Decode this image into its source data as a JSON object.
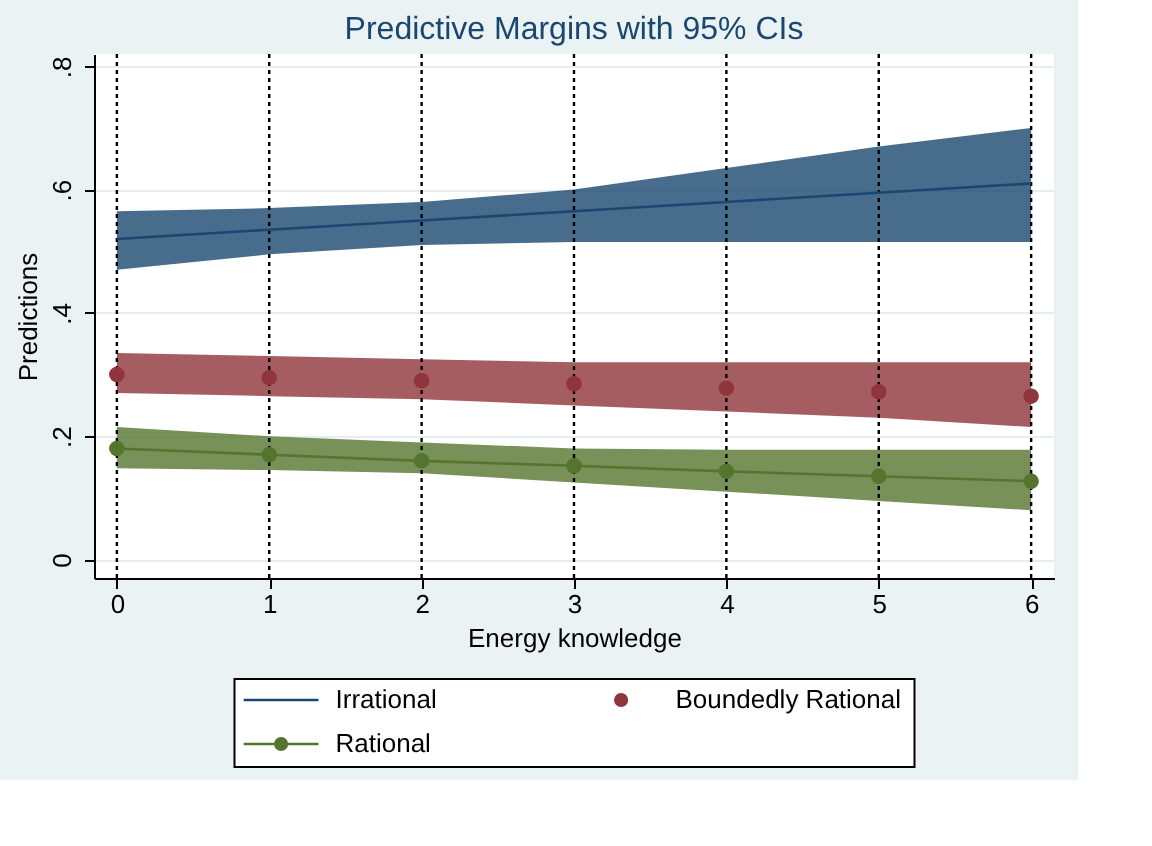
{
  "chart_data": {
    "type": "line",
    "title": "Predictive Margins with 95% CIs",
    "xlabel": "Energy knowledge",
    "ylabel": "Predictions",
    "x": [
      0,
      1,
      2,
      3,
      4,
      5,
      6
    ],
    "series": [
      {
        "name": "Irrational",
        "marker": "none",
        "color": "#1a476f",
        "values": [
          0.52,
          0.535,
          0.55,
          0.565,
          0.58,
          0.595,
          0.61
        ],
        "lower": [
          0.47,
          0.495,
          0.51,
          0.515,
          0.515,
          0.515,
          0.515
        ],
        "upper": [
          0.565,
          0.57,
          0.58,
          0.6,
          0.635,
          0.67,
          0.7
        ]
      },
      {
        "name": "Boundedly Rational",
        "type": "scatter",
        "marker": "circle",
        "color": "#90353b",
        "values": [
          0.3,
          0.295,
          0.29,
          0.285,
          0.278,
          0.272,
          0.265
        ],
        "lower": [
          0.27,
          0.265,
          0.26,
          0.25,
          0.24,
          0.23,
          0.215
        ],
        "upper": [
          0.335,
          0.33,
          0.325,
          0.32,
          0.32,
          0.32,
          0.32
        ]
      },
      {
        "name": "Rational",
        "marker": "circle",
        "color": "#55752f",
        "values": [
          0.18,
          0.17,
          0.16,
          0.152,
          0.143,
          0.135,
          0.127
        ],
        "lower": [
          0.148,
          0.145,
          0.14,
          0.125,
          0.11,
          0.095,
          0.08
        ],
        "upper": [
          0.215,
          0.2,
          0.19,
          0.18,
          0.178,
          0.178,
          0.178
        ]
      }
    ],
    "xlim": [
      -0.15,
      6.15
    ],
    "xticks": [
      0,
      1,
      2,
      3,
      4,
      5,
      6
    ],
    "ylim": [
      -0.03,
      0.82
    ],
    "yticks": [
      {
        "value": 0,
        "label": "0"
      },
      {
        "value": 0.2,
        "label": ".2"
      },
      {
        "value": 0.4,
        "label": ".4"
      },
      {
        "value": 0.6,
        "label": ".6"
      },
      {
        "value": 0.8,
        "label": ".8"
      }
    ],
    "ref_lines": [
      {
        "axis": "x",
        "value": 0,
        "line_style": "dotted",
        "color": "#000000"
      },
      {
        "axis": "x",
        "value": 1,
        "line_style": "dotted",
        "color": "#000000"
      },
      {
        "axis": "x",
        "value": 2,
        "line_style": "dotted",
        "color": "#000000"
      },
      {
        "axis": "x",
        "value": 3,
        "line_style": "dotted",
        "color": "#000000"
      },
      {
        "axis": "x",
        "value": 4,
        "line_style": "dotted",
        "color": "#000000"
      },
      {
        "axis": "x",
        "value": 5,
        "line_style": "dotted",
        "color": "#000000"
      },
      {
        "axis": "x",
        "value": 6,
        "line_style": "dotted",
        "color": "#000000"
      }
    ],
    "grid": "y",
    "legend": "bottom"
  }
}
